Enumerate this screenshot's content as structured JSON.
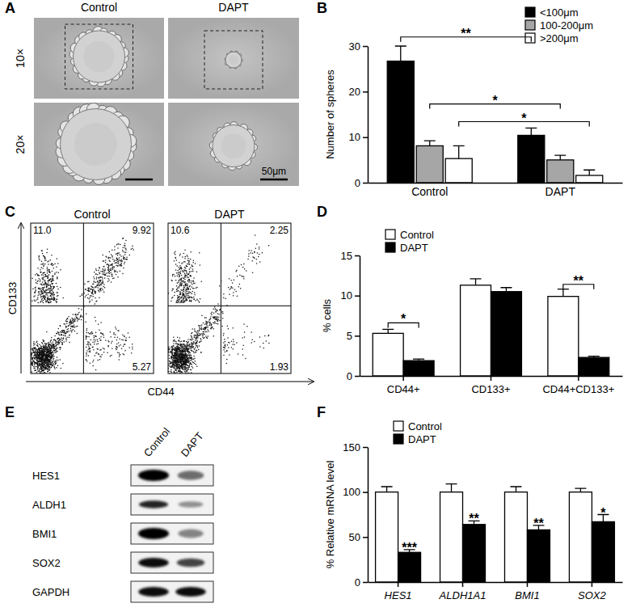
{
  "chart_data": [
    {
      "type": "image",
      "panel_label": "A",
      "columns": [
        "Control",
        "DAPT"
      ],
      "rows": [
        "10×",
        "20×"
      ],
      "scale_bar": "50μm"
    },
    {
      "type": "bar",
      "panel_label": "B",
      "y_label": "Number of spheres",
      "categories": [
        "Control",
        "DAPT"
      ],
      "series": [
        {
          "name": "<100μm",
          "color": "#000000",
          "values": [
            26.7,
            10.4
          ],
          "errors": [
            3.3,
            1.6
          ]
        },
        {
          "name": "100-200μm",
          "color": "#a6a6a6",
          "values": [
            8.1,
            5.0
          ],
          "errors": [
            1.1,
            1.0
          ]
        },
        {
          "name": ">200μm",
          "color": "#ffffff",
          "values": [
            5.3,
            1.6
          ],
          "errors": [
            2.8,
            1.2
          ]
        }
      ],
      "ylim": [
        0,
        30
      ],
      "yticks": [
        0,
        10,
        20,
        30
      ],
      "legend": "top-right",
      "significance": [
        {
          "series": 0,
          "y": 32,
          "label": "**"
        },
        {
          "series": 1,
          "y": 17.3,
          "label": "*"
        },
        {
          "series": 2,
          "y": 13.4,
          "label": "*"
        }
      ]
    },
    {
      "type": "flow_cytometry",
      "panel_label": "C",
      "x_label": "CD44",
      "y_label": "CD133",
      "plots": [
        {
          "title": "Control",
          "upper_left": {
            "value": 11.0,
            "label": "11.0"
          },
          "upper_right": {
            "value": 9.92,
            "label": "9.92"
          },
          "lower_right": {
            "value": 5.27,
            "label": "5.27"
          }
        },
        {
          "title": "DAPT",
          "upper_left": {
            "value": 10.6,
            "label": "10.6"
          },
          "upper_right": {
            "value": 2.25,
            "label": "2.25"
          },
          "lower_right": {
            "value": 1.93,
            "label": "1.93"
          }
        }
      ]
    },
    {
      "type": "bar",
      "panel_label": "D",
      "y_label": "% cells",
      "categories": [
        "CD44+",
        "CD133+",
        "CD44+CD133+"
      ],
      "series": [
        {
          "name": "Control",
          "color": "#ffffff",
          "values": [
            5.3,
            11.3,
            9.9
          ],
          "errors": [
            0.5,
            0.8,
            0.9
          ]
        },
        {
          "name": "DAPT",
          "color": "#000000",
          "values": [
            1.9,
            10.5,
            2.3
          ],
          "errors": [
            0.2,
            0.5,
            0.15
          ]
        }
      ],
      "ylim": [
        0,
        15
      ],
      "yticks": [
        0,
        5,
        10,
        15
      ],
      "legend": "top-left",
      "significance": [
        {
          "category": 0,
          "y": 6.6,
          "label": "*"
        },
        {
          "category": 2,
          "y": 11.4,
          "label": "**"
        }
      ]
    },
    {
      "type": "blot",
      "panel_label": "E",
      "columns": [
        "Control",
        "DAPT"
      ],
      "rows": [
        "HES1",
        "ALDH1",
        "BMI1",
        "SOX2",
        "GAPDH"
      ]
    },
    {
      "type": "bar",
      "panel_label": "F",
      "y_label": "% Relative mRNA level",
      "categories": [
        "HES1",
        "ALDH1A1",
        "BMI1",
        "SOX2"
      ],
      "series": [
        {
          "name": "Control",
          "color": "#ffffff",
          "values": [
            100,
            100,
            100,
            100
          ],
          "errors": [
            6,
            9,
            6,
            4
          ]
        },
        {
          "name": "DAPT",
          "color": "#000000",
          "values": [
            33,
            64,
            58,
            67
          ],
          "errors": [
            3,
            4,
            5,
            8
          ]
        }
      ],
      "ylim": [
        0,
        150
      ],
      "yticks": [
        0,
        50,
        100,
        150
      ],
      "legend": "top-left",
      "significance": [
        {
          "category": 0,
          "series": 1,
          "label": "***"
        },
        {
          "category": 1,
          "series": 1,
          "label": "**"
        },
        {
          "category": 2,
          "series": 1,
          "label": "**"
        },
        {
          "category": 3,
          "series": 1,
          "label": "*"
        }
      ]
    }
  ]
}
